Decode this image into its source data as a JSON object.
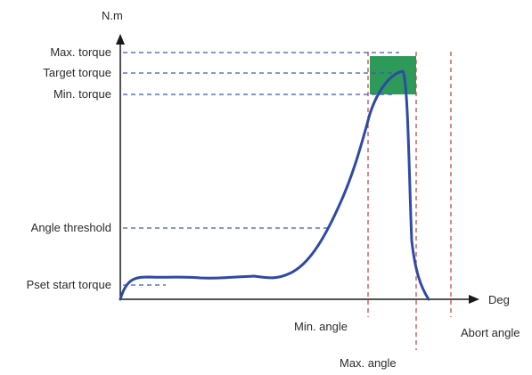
{
  "axes": {
    "y_unit": "N.m",
    "x_unit": "Deg"
  },
  "torque_levels": [
    {
      "key": "max_torque",
      "label": "Max. torque"
    },
    {
      "key": "target_torque",
      "label": "Target torque"
    },
    {
      "key": "min_torque",
      "label": "Min. torque"
    },
    {
      "key": "angle_threshold",
      "label": "Angle threshold"
    },
    {
      "key": "pset_start_torque",
      "label": "Pset start torque"
    }
  ],
  "angle_markers": [
    {
      "key": "min_angle",
      "label": "Min. angle"
    },
    {
      "key": "max_angle",
      "label": "Max. angle"
    },
    {
      "key": "abort_angle",
      "label": "Abort angle"
    }
  ],
  "colors": {
    "curve": "#2e4aa6",
    "torque_guides": "#3b57c2",
    "angle_guides": "#cc3b3b",
    "target_window": "#2e9a5a",
    "axis": "#1a1a1a"
  }
}
